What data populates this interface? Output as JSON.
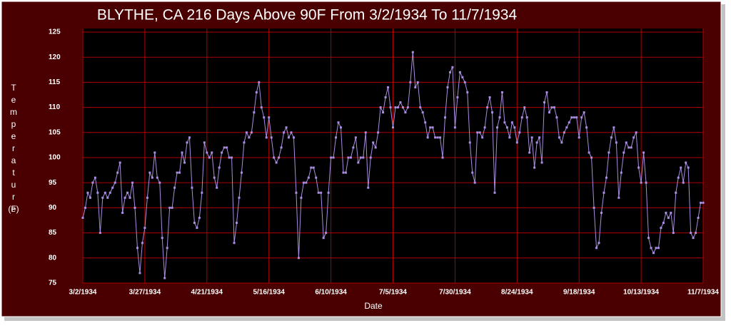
{
  "chart_data": {
    "type": "line",
    "title": "BLYTHE, CA  216 Days Above 90F From 3/2/1934 To 11/7/1934",
    "xlabel": "Date",
    "ylabel": "Temperature",
    "ylabel_units": "(F)",
    "color": "#a98de0",
    "grid": true,
    "ylim": [
      75,
      125
    ],
    "yticks": [
      75,
      80,
      85,
      90,
      95,
      100,
      105,
      110,
      115,
      120,
      125
    ],
    "xticks": [
      "3/2/1934",
      "3/27/1934",
      "4/21/1934",
      "5/16/1934",
      "6/10/1934",
      "7/5/1934",
      "7/30/1934",
      "8/24/1934",
      "9/18/1934",
      "10/13/1934",
      "11/7/1934"
    ],
    "x": [
      "3/2/1934",
      "3/3/1934",
      "3/4/1934",
      "3/5/1934",
      "3/6/1934",
      "3/7/1934",
      "3/8/1934",
      "3/9/1934",
      "3/10/1934",
      "3/11/1934",
      "3/12/1934",
      "3/13/1934",
      "3/14/1934",
      "3/15/1934",
      "3/16/1934",
      "3/17/1934",
      "3/18/1934",
      "3/19/1934",
      "3/20/1934",
      "3/21/1934",
      "3/22/1934",
      "3/23/1934",
      "3/24/1934",
      "3/25/1934",
      "3/26/1934",
      "3/27/1934",
      "3/28/1934",
      "3/29/1934",
      "3/30/1934",
      "3/31/1934",
      "4/1/1934",
      "4/2/1934",
      "4/3/1934",
      "4/4/1934",
      "4/5/1934",
      "4/6/1934",
      "4/7/1934",
      "4/8/1934",
      "4/9/1934",
      "4/10/1934",
      "4/11/1934",
      "4/12/1934",
      "4/13/1934",
      "4/14/1934",
      "4/15/1934",
      "4/16/1934",
      "4/17/1934",
      "4/18/1934",
      "4/19/1934",
      "4/20/1934",
      "4/21/1934",
      "4/22/1934",
      "4/23/1934",
      "4/24/1934",
      "4/25/1934",
      "4/26/1934",
      "4/27/1934",
      "4/28/1934",
      "4/29/1934",
      "4/30/1934",
      "5/1/1934",
      "5/2/1934",
      "5/3/1934",
      "5/4/1934",
      "5/5/1934",
      "5/6/1934",
      "5/7/1934",
      "5/8/1934",
      "5/9/1934",
      "5/10/1934",
      "5/11/1934",
      "5/12/1934",
      "5/13/1934",
      "5/14/1934",
      "5/15/1934",
      "5/16/1934",
      "5/17/1934",
      "5/18/1934",
      "5/19/1934",
      "5/20/1934",
      "5/21/1934",
      "5/22/1934",
      "5/23/1934",
      "5/24/1934",
      "5/25/1934",
      "5/26/1934",
      "5/27/1934",
      "5/28/1934",
      "5/29/1934",
      "5/30/1934",
      "5/31/1934",
      "6/1/1934",
      "6/2/1934",
      "6/3/1934",
      "6/4/1934",
      "6/5/1934",
      "6/6/1934",
      "6/7/1934",
      "6/8/1934",
      "6/9/1934",
      "6/10/1934",
      "6/11/1934",
      "6/12/1934",
      "6/13/1934",
      "6/14/1934",
      "6/15/1934",
      "6/16/1934",
      "6/17/1934",
      "6/18/1934",
      "6/19/1934",
      "6/20/1934",
      "6/21/1934",
      "6/22/1934",
      "6/23/1934",
      "6/24/1934",
      "6/25/1934",
      "6/26/1934",
      "6/27/1934",
      "6/28/1934",
      "6/29/1934",
      "6/30/1934",
      "7/1/1934",
      "7/2/1934",
      "7/3/1934",
      "7/4/1934",
      "7/5/1934",
      "7/6/1934",
      "7/7/1934",
      "7/8/1934",
      "7/9/1934",
      "7/10/1934",
      "7/11/1934",
      "7/12/1934",
      "7/13/1934",
      "7/14/1934",
      "7/15/1934",
      "7/16/1934",
      "7/17/1934",
      "7/18/1934",
      "7/19/1934",
      "7/20/1934",
      "7/21/1934",
      "7/22/1934",
      "7/23/1934",
      "7/24/1934",
      "7/25/1934",
      "7/26/1934",
      "7/27/1934",
      "7/28/1934",
      "7/29/1934",
      "7/30/1934",
      "7/31/1934",
      "8/1/1934",
      "8/2/1934",
      "8/3/1934",
      "8/4/1934",
      "8/5/1934",
      "8/6/1934",
      "8/7/1934",
      "8/8/1934",
      "8/9/1934",
      "8/10/1934",
      "8/11/1934",
      "8/12/1934",
      "8/13/1934",
      "8/14/1934",
      "8/15/1934",
      "8/16/1934",
      "8/17/1934",
      "8/18/1934",
      "8/19/1934",
      "8/20/1934",
      "8/21/1934",
      "8/22/1934",
      "8/23/1934",
      "8/24/1934",
      "8/25/1934",
      "8/26/1934",
      "8/27/1934",
      "8/28/1934",
      "8/29/1934",
      "8/30/1934",
      "8/31/1934",
      "9/1/1934",
      "9/2/1934",
      "9/3/1934",
      "9/4/1934",
      "9/5/1934",
      "9/6/1934",
      "9/7/1934",
      "9/8/1934",
      "9/9/1934",
      "9/10/1934",
      "9/11/1934",
      "9/12/1934",
      "9/13/1934",
      "9/14/1934",
      "9/15/1934",
      "9/16/1934",
      "9/17/1934",
      "9/18/1934",
      "9/19/1934",
      "9/20/1934",
      "9/21/1934",
      "9/22/1934",
      "9/23/1934",
      "9/24/1934",
      "9/25/1934",
      "9/26/1934",
      "9/27/1934",
      "9/28/1934",
      "9/29/1934",
      "9/30/1934",
      "10/1/1934",
      "10/2/1934",
      "10/3/1934",
      "10/4/1934",
      "10/5/1934",
      "10/6/1934",
      "10/7/1934",
      "10/8/1934",
      "10/9/1934",
      "10/10/1934",
      "10/11/1934",
      "10/12/1934",
      "10/13/1934",
      "10/14/1934",
      "10/15/1934",
      "10/16/1934",
      "10/17/1934",
      "10/18/1934",
      "10/19/1934",
      "10/20/1934",
      "10/21/1934",
      "10/22/1934",
      "10/23/1934",
      "10/24/1934",
      "10/25/1934",
      "10/26/1934",
      "10/27/1934",
      "10/28/1934",
      "10/29/1934",
      "10/30/1934",
      "10/31/1934",
      "11/1/1934",
      "11/2/1934",
      "11/3/1934",
      "11/4/1934",
      "11/5/1934",
      "11/6/1934",
      "11/7/1934"
    ],
    "values": [
      88,
      90,
      93,
      92,
      95,
      96,
      93,
      85,
      92,
      93,
      92,
      93,
      94,
      95,
      97,
      99,
      89,
      92,
      93,
      92,
      95,
      90,
      82,
      77,
      83,
      86,
      92,
      97,
      96,
      101,
      96,
      95,
      84,
      76,
      82,
      90,
      90,
      94,
      97,
      97,
      101,
      99,
      103,
      104,
      94,
      87,
      86,
      88,
      93,
      103,
      101,
      100,
      101,
      96,
      94,
      98,
      101,
      102,
      102,
      100,
      100,
      83,
      87,
      92,
      97,
      103,
      105,
      104,
      105,
      109,
      113,
      115,
      110,
      108,
      104,
      108,
      104,
      100,
      99,
      100,
      102,
      105,
      106,
      104,
      105,
      104,
      93,
      80,
      92,
      95,
      95,
      96,
      98,
      98,
      96,
      93,
      93,
      84,
      85,
      93,
      100,
      100,
      104,
      107,
      106,
      97,
      97,
      100,
      100,
      102,
      104,
      99,
      100,
      100,
      105,
      94,
      100,
      103,
      102,
      105,
      110,
      109,
      112,
      114,
      110,
      106,
      110,
      110,
      111,
      110,
      109,
      110,
      115,
      121,
      114,
      115,
      110,
      109,
      107,
      104,
      106,
      106,
      104,
      104,
      104,
      100,
      108,
      114,
      117,
      118,
      106,
      112,
      117,
      116,
      115,
      113,
      103,
      97,
      95,
      105,
      105,
      104,
      106,
      110,
      112,
      109,
      93,
      106,
      108,
      113,
      107,
      106,
      104,
      107,
      106,
      103,
      105,
      108,
      110,
      108,
      101,
      104,
      98,
      103,
      104,
      99,
      111,
      113,
      109,
      110,
      110,
      108,
      104,
      103,
      105,
      106,
      107,
      108,
      108,
      108,
      104,
      108,
      109,
      106,
      101,
      100,
      90,
      82,
      83,
      89,
      93,
      96,
      101,
      104,
      106,
      103,
      92,
      97,
      101,
      103,
      102,
      102,
      104,
      105,
      98,
      95,
      101,
      95,
      84,
      82,
      81,
      82,
      82,
      86,
      87,
      89,
      88,
      89,
      85,
      93,
      96,
      98,
      95,
      99,
      98,
      85,
      84,
      85,
      88,
      91,
      91
    ]
  }
}
